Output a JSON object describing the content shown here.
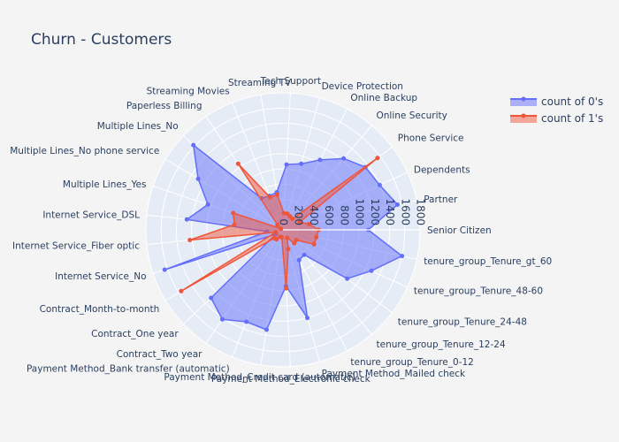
{
  "chart_data": {
    "type": "radar",
    "title": "Churn -  Customers",
    "radial_ticks": [
      "0",
      "200",
      "400",
      "600",
      "800",
      "1000",
      "1200",
      "1400",
      "1600",
      "1800"
    ],
    "radial_max": 1800,
    "categories": [
      "Senior Citizen",
      "Partner",
      "Dependents",
      "Phone Service",
      "Online Security",
      "Online Backup",
      "Device Protection",
      "Tech Support",
      "Streaming TV",
      "Streaming Movies",
      "Paperless Billing",
      "Multiple Lines_No",
      "Multiple Lines_No phone service",
      "Multiple Lines_Yes",
      "Internet Service_DSL",
      "Internet Service_Fiber optic",
      "Internet Service_No",
      "Contract_Month-to-month",
      "Contract_One year",
      "Contract_Two year",
      "Payment Method_Bank transfer (automatic)",
      "Payment Method_Credit card (automatic)",
      "Payment Method_Electronic check",
      "Payment Method_Mailed check",
      "tenure_group_Tenure_0-12",
      "tenure_group_Tenure_12-24",
      "tenure_group_Tenure_24-48",
      "tenure_group_Tenure_48-60",
      "tenure_group_Tenure_gt_60"
    ],
    "series": [
      {
        "name": "count of 0's",
        "color": "#636efa",
        "values": [
          1120,
          1540,
          1400,
          1360,
          1230,
          1040,
          900,
          860,
          500,
          480,
          500,
          1620,
          1300,
          1040,
          1270,
          210,
          1640,
          110,
          1300,
          1420,
          1300,
          1330,
          740,
          1200,
          450,
          430,
          1060,
          1280,
          1600
        ]
      },
      {
        "name": "count of 1's",
        "color": "#ef553b",
        "values": [
          470,
          350,
          240,
          1560,
          190,
          200,
          220,
          220,
          470,
          460,
          1050,
          100,
          30,
          690,
          640,
          1230,
          100,
          1560,
          160,
          150,
          100,
          100,
          770,
          260,
          120,
          230,
          220,
          450,
          450
        ]
      }
    ],
    "legend": {
      "position": "top-right"
    },
    "grid": true
  }
}
